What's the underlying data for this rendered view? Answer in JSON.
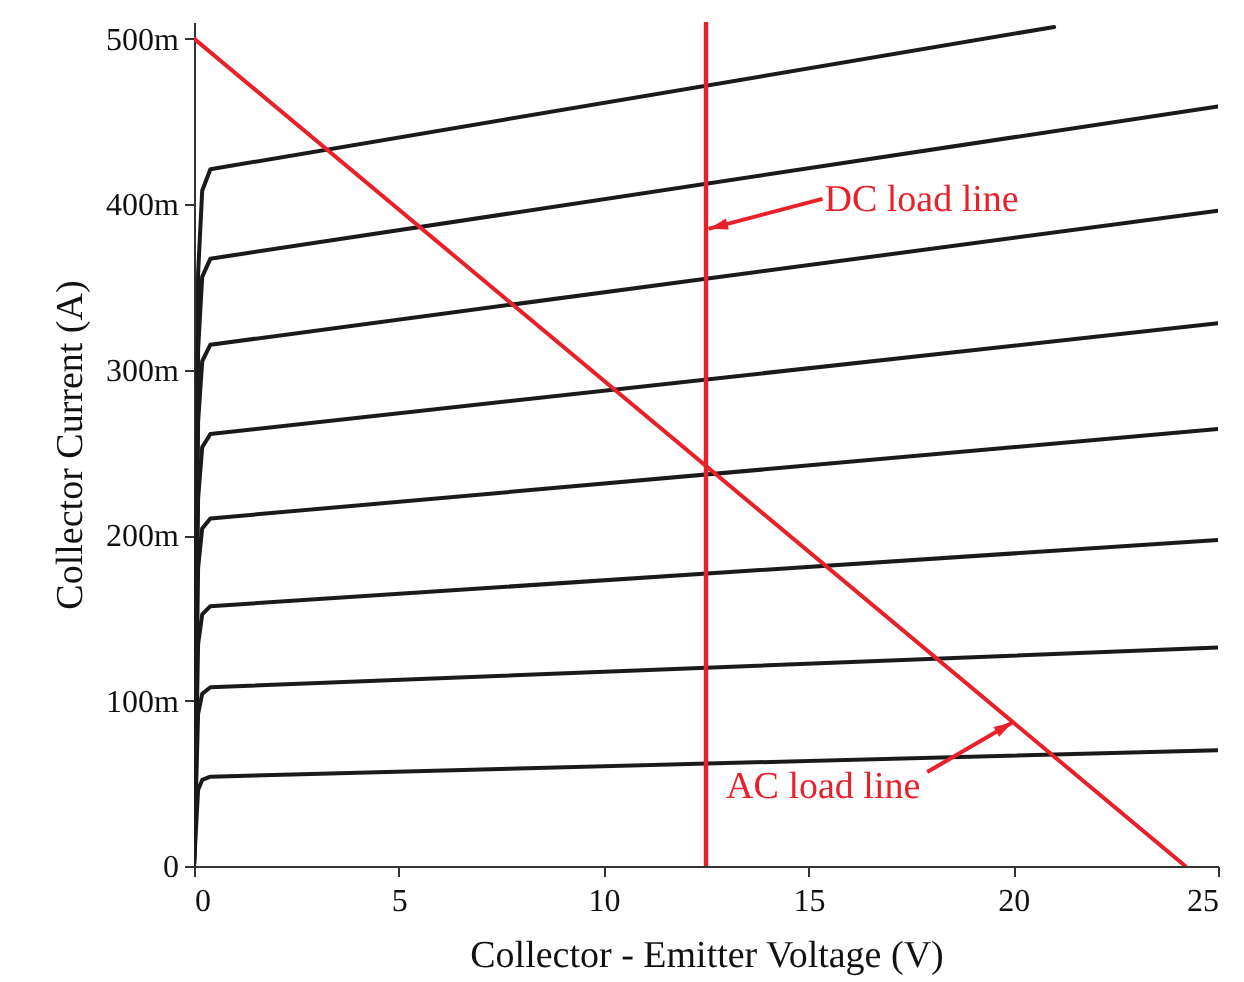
{
  "chart_data": {
    "type": "line",
    "xlabel": "Collector - Emitter Voltage (V)",
    "ylabel": "Collector Current (A)",
    "xlim": [
      0,
      25
    ],
    "ylim": [
      0,
      510
    ],
    "xticks": [
      0,
      5,
      10,
      15,
      20,
      25
    ],
    "yticks": [
      0,
      {
        "value": 100,
        "label": "100m"
      },
      {
        "value": 200,
        "label": "200m"
      },
      {
        "value": 300,
        "label": "300m"
      },
      {
        "value": 400,
        "label": "400m"
      },
      {
        "value": 500,
        "label": "500m"
      }
    ],
    "grid": false,
    "marker": "none",
    "line_style": "solid",
    "series": [
      {
        "color": "#1a1a1a",
        "x": [
          0,
          0.1,
          0.2,
          0.4,
          25
        ],
        "values": [
          0,
          46,
          52,
          54,
          70
        ]
      },
      {
        "color": "#1a1a1a",
        "x": [
          0,
          0.1,
          0.2,
          0.4,
          25
        ],
        "values": [
          0,
          92,
          104,
          108,
          132
        ]
      },
      {
        "color": "#1a1a1a",
        "x": [
          0,
          0.1,
          0.2,
          0.4,
          25
        ],
        "values": [
          0,
          134,
          152,
          157,
          197
        ]
      },
      {
        "color": "#1a1a1a",
        "x": [
          0,
          0.1,
          0.2,
          0.4,
          25
        ],
        "values": [
          0,
          180,
          204,
          210,
          264
        ]
      },
      {
        "color": "#1a1a1a",
        "x": [
          0,
          0.1,
          0.2,
          0.4,
          25
        ],
        "values": [
          0,
          222,
          253,
          261,
          328
        ]
      },
      {
        "color": "#1a1a1a",
        "x": [
          0,
          0.1,
          0.2,
          0.4,
          25
        ],
        "values": [
          0,
          268,
          305,
          315,
          396
        ]
      },
      {
        "color": "#1a1a1a",
        "x": [
          0,
          0.1,
          0.2,
          0.4,
          25
        ],
        "values": [
          0,
          312,
          356,
          367,
          459
        ]
      },
      {
        "color": "#1a1a1a",
        "x": [
          0,
          0.1,
          0.2,
          0.4,
          21
        ],
        "values": [
          0,
          358,
          408,
          421,
          507
        ]
      },
      {
        "type": "line",
        "color": "#e8202a",
        "x": [
          0,
          24.2
        ],
        "values": [
          500,
          0
        ]
      }
    ],
    "ref_lines": [
      {
        "axis": "x",
        "value": 12.5,
        "color": "#e8202a"
      }
    ],
    "annotations": [
      {
        "text": "DC load line",
        "x": 12.56,
        "y": 385
      },
      {
        "text": "AC load line",
        "x": 20,
        "y": 87
      }
    ]
  }
}
